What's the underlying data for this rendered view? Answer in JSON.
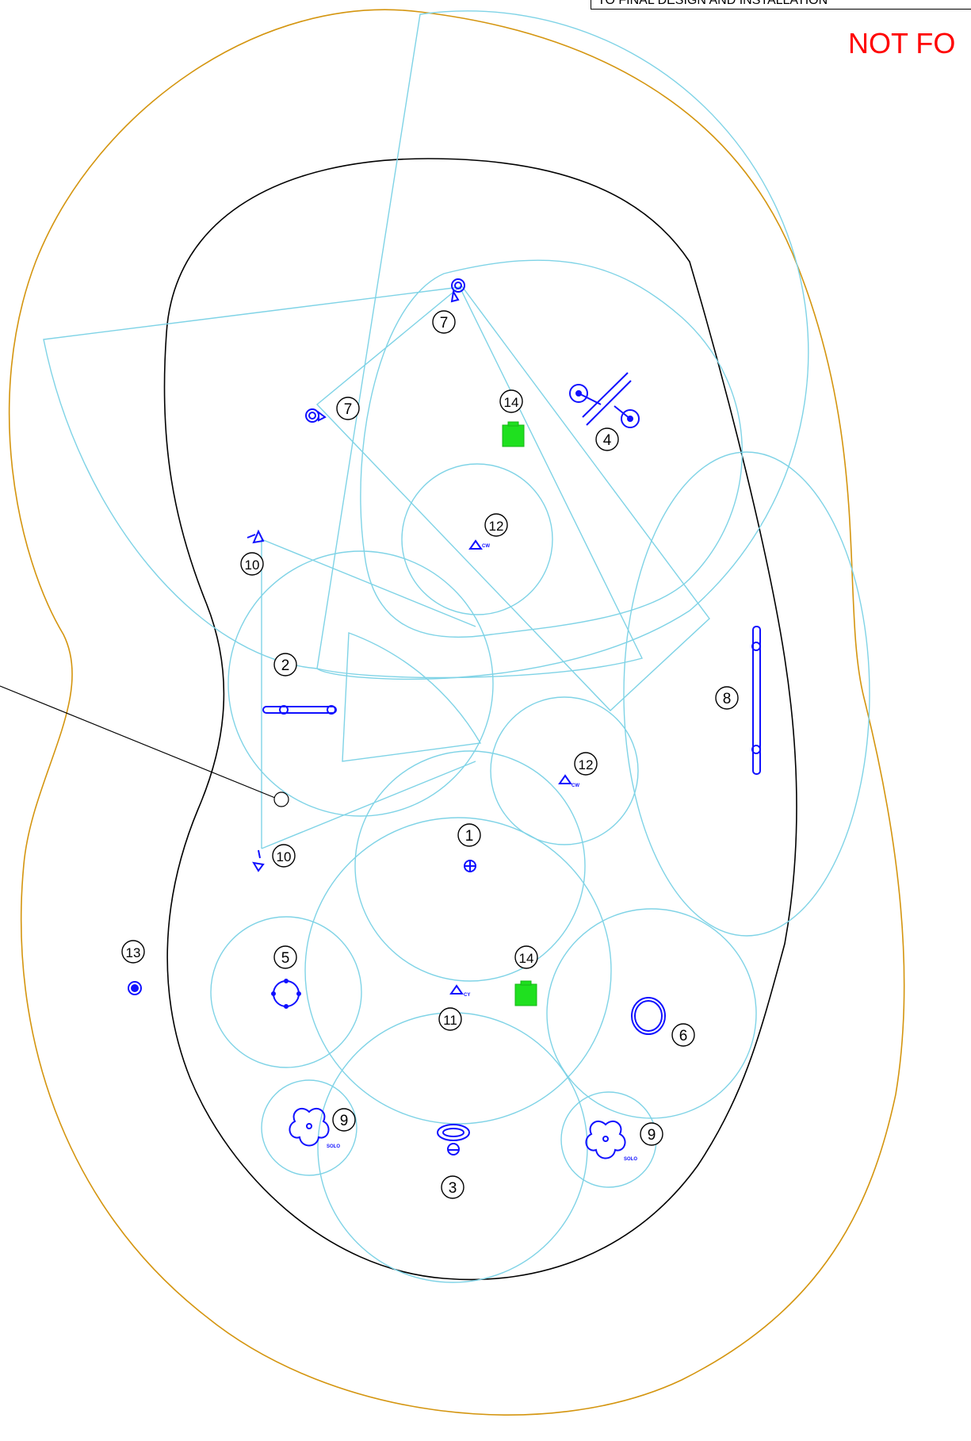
{
  "header": {
    "note": "TO FINAL DESIGN AND INSTALLATION"
  },
  "stamp": {
    "text": "NOT FO"
  },
  "colors": {
    "outer_boundary": "#d4950f",
    "pool_edge": "#000000",
    "coverage": "#7fd3e6",
    "fixture": "#1010ff",
    "marker_green": "#1fe01f"
  },
  "callouts": [
    {
      "id": "1",
      "label": "1"
    },
    {
      "id": "2",
      "label": "2"
    },
    {
      "id": "3",
      "label": "3"
    },
    {
      "id": "4",
      "label": "4"
    },
    {
      "id": "5",
      "label": "5"
    },
    {
      "id": "6",
      "label": "6"
    },
    {
      "id": "7a",
      "label": "7"
    },
    {
      "id": "7b",
      "label": "7"
    },
    {
      "id": "8",
      "label": "8"
    },
    {
      "id": "9a",
      "label": "9"
    },
    {
      "id": "9b",
      "label": "9"
    },
    {
      "id": "10a",
      "label": "10"
    },
    {
      "id": "10b",
      "label": "10"
    },
    {
      "id": "11",
      "label": "11"
    },
    {
      "id": "12a",
      "label": "12"
    },
    {
      "id": "12b",
      "label": "12"
    },
    {
      "id": "13",
      "label": "13"
    },
    {
      "id": "14a",
      "label": "14"
    },
    {
      "id": "14b",
      "label": "14"
    }
  ],
  "symbol_tags": {
    "solo": "SOLO",
    "cw": "CW",
    "cy": "CY"
  }
}
